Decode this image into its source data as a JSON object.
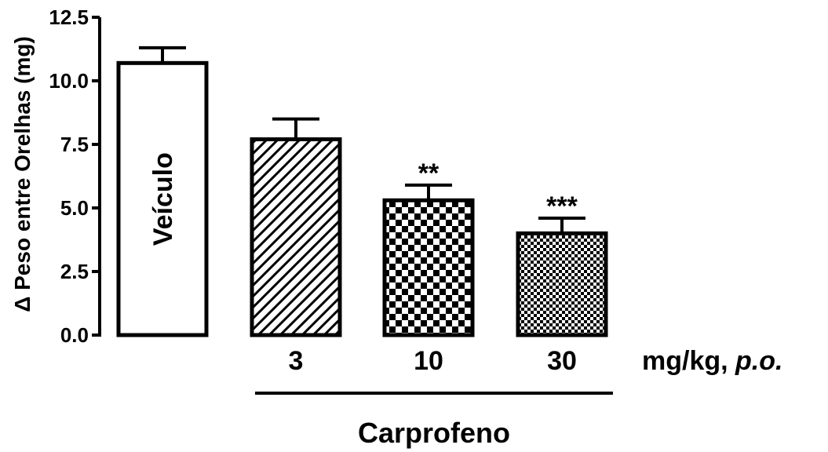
{
  "chart_data": {
    "type": "bar",
    "title": "",
    "xlabel": "",
    "ylabel": "Δ Peso entre Orelhas (mg)",
    "ylim": [
      0,
      12.5
    ],
    "yticks": [
      "0.0",
      "2.5",
      "5.0",
      "7.5",
      "10.0",
      "12.5"
    ],
    "ytick_values": [
      0,
      2.5,
      5,
      7.5,
      10,
      12.5
    ],
    "grid": false,
    "legend": "none",
    "bars": [
      {
        "category": "",
        "inner_label": "Veículo",
        "value": 10.7,
        "error": 0.6,
        "significance": "",
        "pattern": "solid-white"
      },
      {
        "category": "3",
        "inner_label": "",
        "value": 7.7,
        "error": 0.8,
        "significance": "",
        "pattern": "diagonal-stripes"
      },
      {
        "category": "10",
        "inner_label": "",
        "value": 5.3,
        "error": 0.6,
        "significance": "**",
        "pattern": "checker-large"
      },
      {
        "category": "30",
        "inner_label": "",
        "value": 4.0,
        "error": 0.6,
        "significance": "***",
        "pattern": "checker-small"
      }
    ],
    "unit_label": "mg/kg,",
    "unit_label_italic": "p.o.",
    "group_label": "Carprofeno"
  },
  "colors": {
    "bar_fill": "#ffffff",
    "ink": "#000000"
  }
}
